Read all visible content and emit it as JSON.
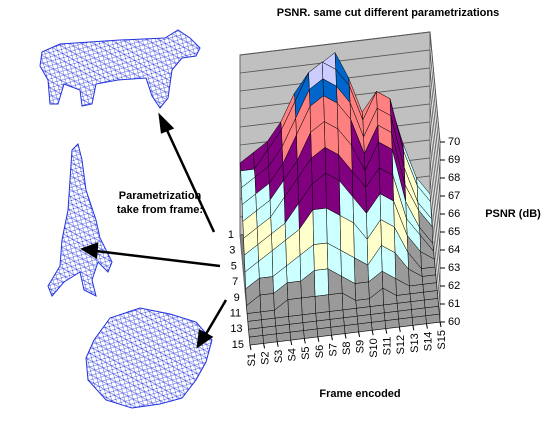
{
  "chart_data": {
    "type": "surface3d",
    "title": "PSNR.  same cut different parametrizations",
    "x_label": "Frame encoded",
    "z_label": "PSNR (dB)",
    "annotation": [
      "Parametrization",
      "take from frame:"
    ],
    "categories": [
      "S1",
      "S2",
      "S3",
      "S4",
      "S5",
      "S6",
      "S7",
      "S8",
      "S9",
      "S10",
      "S11",
      "S12",
      "S13",
      "S14",
      "S15"
    ],
    "depth_categories": [
      1,
      null,
      3,
      null,
      5,
      null,
      7,
      null,
      9,
      null,
      11,
      null,
      13,
      null,
      15
    ],
    "zlim": [
      60,
      70
    ],
    "zticks": [
      60,
      61,
      62,
      63,
      64,
      65,
      66,
      67,
      68,
      69,
      70
    ],
    "band_colors": [
      "#9a9a9a",
      "#ccffff",
      "#ffffcc",
      "#ccffff",
      "#800080",
      "#800080",
      "#ff8080",
      "#ff8080",
      "#0066cc",
      "#ccccff"
    ],
    "values": [
      [
        64,
        64.5,
        65,
        66,
        67.5,
        68.5,
        69,
        69.5,
        68,
        66,
        67,
        66.5,
        64,
        62,
        61
      ],
      [
        64,
        64,
        65,
        66,
        67.5,
        69,
        69.5,
        69,
        68,
        66,
        67.5,
        67,
        64,
        62,
        61
      ],
      [
        63.5,
        64,
        64.5,
        65.5,
        67,
        68.5,
        69,
        68.5,
        67.5,
        65.5,
        67,
        66.5,
        63.5,
        61.5,
        60.5
      ],
      [
        63,
        63.5,
        64,
        65,
        66.5,
        68,
        68.5,
        68,
        67,
        65,
        66.5,
        66,
        63,
        61.5,
        60.5
      ],
      [
        62.5,
        63,
        63.5,
        64.5,
        65.5,
        67,
        67.5,
        67,
        66,
        64.5,
        66,
        65.5,
        62.5,
        61,
        60
      ],
      [
        62,
        62.5,
        63,
        64,
        65,
        66,
        66.5,
        66,
        65,
        64,
        65,
        64.5,
        62,
        61,
        60
      ],
      [
        61.5,
        62,
        62.5,
        63,
        64,
        65,
        65.5,
        65,
        64,
        63,
        64,
        63.5,
        61.5,
        60.5,
        60
      ],
      [
        61,
        61.5,
        62,
        62.5,
        63,
        64,
        64,
        63.5,
        63,
        62,
        63,
        62.5,
        61,
        60,
        60
      ],
      [
        60.5,
        61,
        61,
        61.5,
        62,
        62.5,
        62.5,
        62,
        61.5,
        61,
        62,
        61.5,
        60.5,
        60,
        60
      ],
      [
        60,
        60.5,
        60.5,
        61,
        61,
        61.5,
        61.5,
        61,
        60.5,
        60.5,
        61,
        60.5,
        60,
        60,
        60
      ],
      [
        60,
        60,
        60,
        60.5,
        60.5,
        60.5,
        60.5,
        60.5,
        60,
        60,
        60.5,
        60,
        60,
        60,
        60
      ],
      [
        60,
        60,
        60,
        60,
        60,
        60,
        60,
        60,
        60,
        60,
        60,
        60,
        60,
        60,
        60
      ],
      [
        60,
        60,
        60,
        60,
        60,
        60,
        60,
        60,
        60,
        60,
        60,
        60,
        60,
        60,
        60
      ],
      [
        60,
        60,
        60,
        60,
        60,
        60,
        60,
        60,
        60,
        60,
        60,
        60,
        60,
        60,
        60
      ],
      [
        60,
        60,
        60,
        60,
        60,
        60,
        60,
        60,
        60,
        60,
        60,
        60,
        60,
        60,
        60
      ]
    ]
  }
}
